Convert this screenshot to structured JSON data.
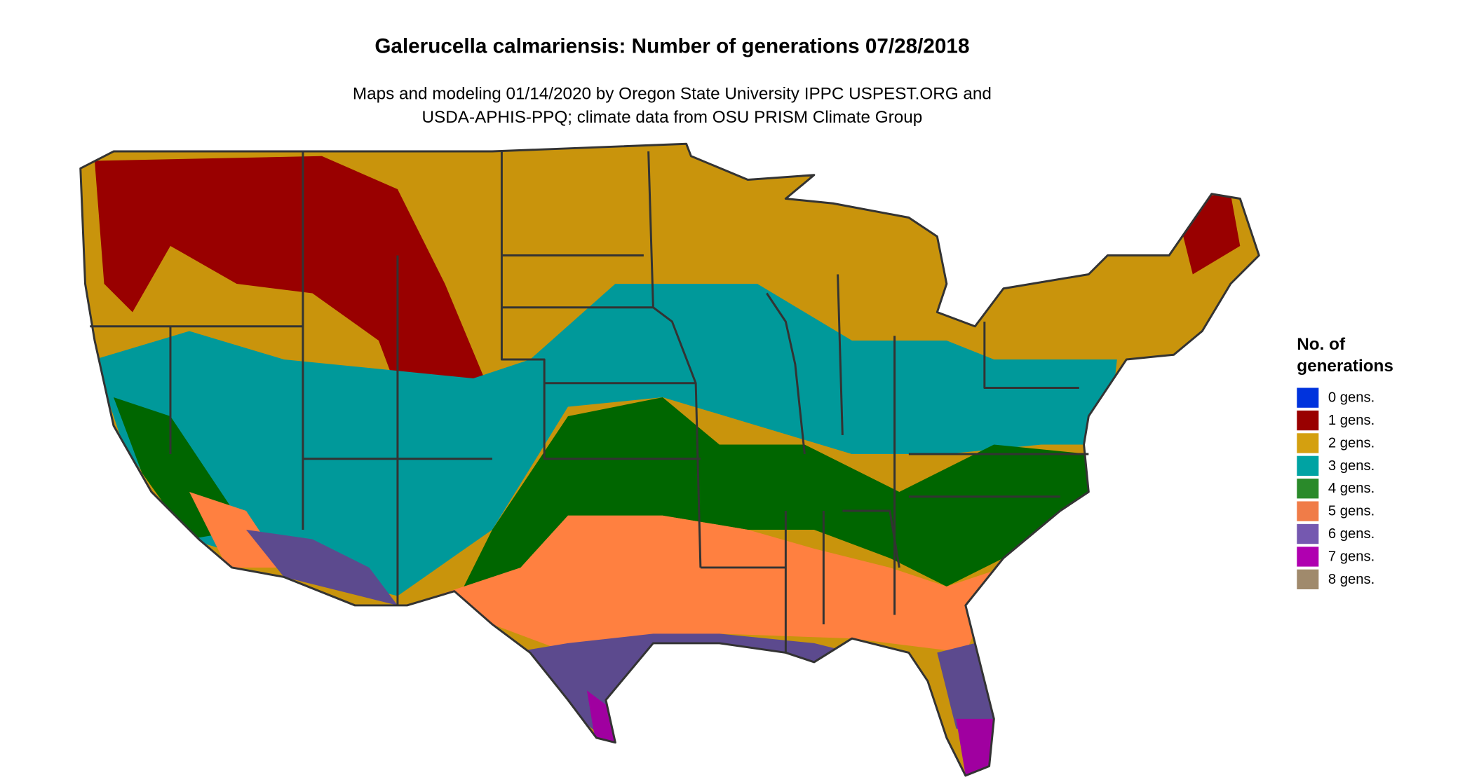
{
  "header": {
    "title": "Galerucella calmariensis: Number of generations 07/28/2018",
    "subtitle": [
      "Maps and modeling 01/14/2020 by Oregon State University IPPC USPEST.ORG and",
      "USDA-APHIS-PPQ; climate data from OSU PRISM Climate Group"
    ]
  },
  "legend": {
    "title": [
      "No. of",
      "generations"
    ],
    "items": [
      {
        "label": "0 gens.",
        "color": "#0033dd"
      },
      {
        "label": "1 gens.",
        "color": "#990000"
      },
      {
        "label": "2 gens.",
        "color": "#d4a010"
      },
      {
        "label": "3 gens.",
        "color": "#00a3a3"
      },
      {
        "label": "4 gens.",
        "color": "#2a8a2a"
      },
      {
        "label": "5 gens.",
        "color": "#f07c48"
      },
      {
        "label": "6 gens.",
        "color": "#7558b0"
      },
      {
        "label": "7 gens.",
        "color": "#b000b0"
      },
      {
        "label": "8 gens.",
        "color": "#a08a6c"
      }
    ]
  }
}
